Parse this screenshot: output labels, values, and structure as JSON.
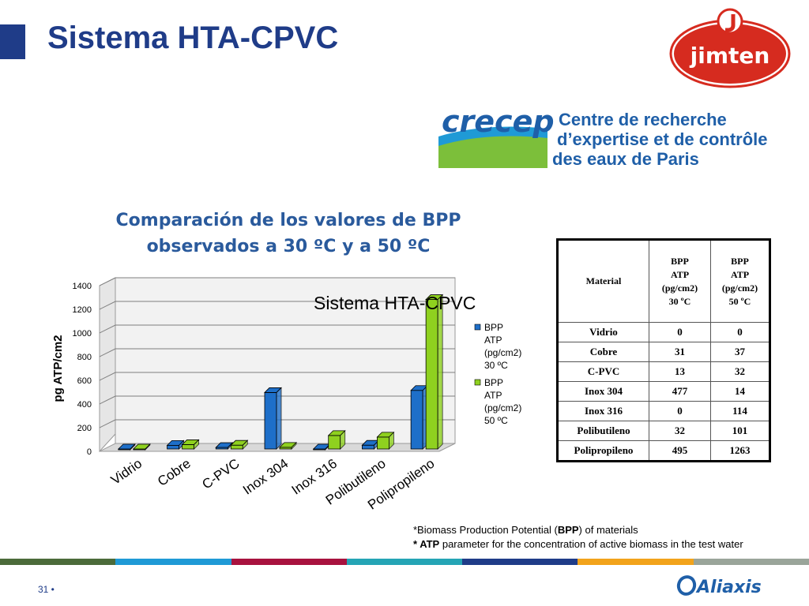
{
  "slide": {
    "title": "Sistema HTA-CPVC",
    "page_number": "31 •"
  },
  "logos": {
    "jimten": "jimten",
    "crecep_word": "crecep",
    "crecep_line1": "Centre de recherche",
    "crecep_line2": "d’expertise et de contrôle",
    "crecep_line3": "des eaux de Paris",
    "aliaxis": "Aliaxis"
  },
  "chart_data": {
    "type": "bar",
    "title_line1": "Comparación de los valores de BPP",
    "title_line2": "observados a 30 ºC y a 50 ºC",
    "overlay_label": "Sistema HTA-CPVC",
    "ylabel": "pg ATP/cm2",
    "xlabel": "",
    "ylim": [
      0,
      1400
    ],
    "yticks": [
      "0",
      "200",
      "400",
      "600",
      "800",
      "1000",
      "1200",
      "1400"
    ],
    "categories": [
      "Vidrio",
      "Cobre",
      "C-PVC",
      "Inox 304",
      "Inox 316",
      "Polibutileno",
      "Polipropileno"
    ],
    "series": [
      {
        "name": "BPP ATP (pg/cm2) 30 ºC",
        "legend_lines": [
          "BPP",
          "ATP",
          "(pg/cm2)",
          "30 ºC"
        ],
        "color": "#1e6fc9",
        "values": [
          0,
          31,
          13,
          477,
          0,
          32,
          495
        ]
      },
      {
        "name": "BPP ATP (pg/cm2) 50 ºC",
        "legend_lines": [
          "BPP",
          "ATP",
          "(pg/cm2)",
          "50 ºC"
        ],
        "color": "#8fd11f",
        "values": [
          0,
          37,
          32,
          14,
          114,
          101,
          1263
        ]
      }
    ],
    "grid": true,
    "legend_position": "right"
  },
  "table": {
    "headers": [
      "Material",
      "BPP ATP (pg/cm2) 30 ºC",
      "BPP ATP (pg/cm2) 50 ºC"
    ],
    "rows": [
      [
        "Vidrio",
        "0",
        "0"
      ],
      [
        "Cobre",
        "31",
        "37"
      ],
      [
        "C-PVC",
        "13",
        "32"
      ],
      [
        "Inox 304",
        "477",
        "14"
      ],
      [
        "Inox 316",
        "0",
        "114"
      ],
      [
        "Polibutileno",
        "32",
        "101"
      ],
      [
        "Polipropileno",
        "495",
        "1263"
      ]
    ]
  },
  "notes": {
    "line1_prefix": "*Biomass Production Potential (",
    "line1_bold": "BPP",
    "line1_suffix": ") of materials",
    "line2_bold": "* ATP",
    "line2_suffix": " parameter for the concentration of active biomass in the test water"
  },
  "colors": {
    "title": "#1f3c88",
    "chart_title": "#2a5a9c",
    "series1": "#1e6fc9",
    "series2": "#8fd11f",
    "stripes": [
      "#4b6b3a",
      "#1f9ad6",
      "#a8123e",
      "#25a5b5",
      "#1f3c88",
      "#f2a31b",
      "#9aa59a"
    ]
  }
}
